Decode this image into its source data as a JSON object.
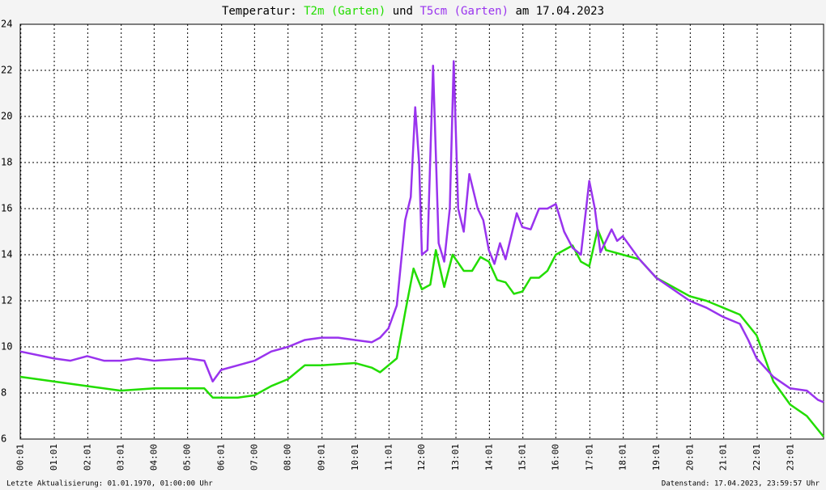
{
  "chart_data": {
    "type": "line",
    "title_parts": [
      "Temperatur:",
      "und",
      "am 17.04.2023"
    ],
    "footer_left": "Letzte Aktualisierung: 01.01.1970, 01:00:00 Uhr",
    "footer_right": "Datenstand: 17.04.2023, 23:59:57 Uhr",
    "xlim": [
      "00:00",
      "24:00"
    ],
    "xticks": [
      "00:01",
      "01:01",
      "02:01",
      "03:01",
      "04:00",
      "05:00",
      "06:01",
      "07:00",
      "08:00",
      "09:01",
      "10:01",
      "11:01",
      "12:00",
      "13:01",
      "14:01",
      "15:01",
      "16:00",
      "17:01",
      "18:01",
      "19:01",
      "20:01",
      "21:01",
      "22:01",
      "23:01"
    ],
    "ylim": [
      6,
      24
    ],
    "yticks": [
      6,
      8,
      10,
      12,
      14,
      16,
      18,
      20,
      22,
      24
    ],
    "grid": true,
    "series": [
      {
        "name": "T2m (Garten)",
        "color": "#22dd00",
        "x": [
          "00:00",
          "01:00",
          "02:00",
          "03:00",
          "04:00",
          "05:00",
          "05:30",
          "05:45",
          "06:30",
          "07:00",
          "07:30",
          "08:00",
          "08:30",
          "09:00",
          "10:00",
          "10:30",
          "10:45",
          "11:00",
          "11:15",
          "11:30",
          "11:45",
          "12:00",
          "12:15",
          "12:25",
          "12:40",
          "12:55",
          "13:15",
          "13:30",
          "13:45",
          "14:00",
          "14:15",
          "14:30",
          "14:45",
          "15:00",
          "15:15",
          "15:30",
          "15:45",
          "16:00",
          "16:30",
          "16:45",
          "17:00",
          "17:15",
          "17:30",
          "18:00",
          "18:30",
          "19:00",
          "19:30",
          "20:00",
          "20:30",
          "21:00",
          "21:30",
          "22:00",
          "22:15",
          "22:30",
          "23:00",
          "23:30",
          "24:00"
        ],
        "values": [
          8.7,
          8.5,
          8.3,
          8.1,
          8.2,
          8.2,
          8.2,
          7.8,
          7.8,
          7.9,
          8.3,
          8.6,
          9.2,
          9.2,
          9.3,
          9.1,
          8.9,
          9.2,
          9.5,
          11.5,
          13.4,
          12.5,
          12.7,
          14.2,
          12.6,
          14.0,
          13.3,
          13.3,
          13.9,
          13.7,
          12.9,
          12.8,
          12.3,
          12.4,
          13.0,
          13.0,
          13.3,
          14.0,
          14.4,
          13.7,
          13.5,
          15.1,
          14.2,
          14.0,
          13.8,
          13.0,
          12.6,
          12.2,
          12.0,
          11.7,
          11.4,
          10.5,
          9.5,
          8.5,
          7.5,
          7.0,
          6.1
        ]
      },
      {
        "name": "T5cm (Garten)",
        "color": "#9933ee",
        "x": [
          "00:00",
          "01:00",
          "01:30",
          "02:00",
          "02:30",
          "03:00",
          "03:30",
          "04:00",
          "05:00",
          "05:30",
          "05:45",
          "06:00",
          "06:30",
          "07:00",
          "07:30",
          "08:00",
          "08:30",
          "09:00",
          "09:30",
          "10:00",
          "10:30",
          "10:45",
          "11:00",
          "11:15",
          "11:30",
          "11:40",
          "11:48",
          "11:55",
          "12:00",
          "12:10",
          "12:20",
          "12:30",
          "12:40",
          "12:50",
          "12:57",
          "13:05",
          "13:15",
          "13:25",
          "13:40",
          "13:50",
          "14:00",
          "14:10",
          "14:20",
          "14:30",
          "14:40",
          "14:50",
          "15:00",
          "15:15",
          "15:30",
          "15:45",
          "16:00",
          "16:15",
          "16:30",
          "16:45",
          "17:00",
          "17:10",
          "17:20",
          "17:30",
          "17:40",
          "17:50",
          "18:00",
          "18:15",
          "18:30",
          "19:00",
          "19:30",
          "20:00",
          "20:30",
          "21:00",
          "21:30",
          "21:45",
          "22:00",
          "22:30",
          "23:00",
          "23:30",
          "23:50",
          "24:00"
        ],
        "values": [
          9.8,
          9.5,
          9.4,
          9.6,
          9.4,
          9.4,
          9.5,
          9.4,
          9.5,
          9.4,
          8.5,
          9.0,
          9.2,
          9.4,
          9.8,
          10.0,
          10.3,
          10.4,
          10.4,
          10.3,
          10.2,
          10.4,
          10.8,
          11.8,
          15.5,
          16.5,
          20.4,
          18.0,
          14.0,
          14.2,
          22.2,
          14.5,
          13.7,
          16.0,
          22.4,
          16.0,
          15.0,
          17.5,
          16.0,
          15.5,
          14.2,
          13.6,
          14.5,
          13.8,
          14.8,
          15.8,
          15.2,
          15.1,
          16.0,
          16.0,
          16.2,
          15.0,
          14.3,
          14.0,
          17.2,
          16.0,
          14.1,
          14.6,
          15.1,
          14.6,
          14.8,
          14.3,
          13.8,
          13.0,
          12.5,
          12.0,
          11.7,
          11.3,
          11.0,
          10.3,
          9.5,
          8.7,
          8.2,
          8.1,
          7.7,
          7.6
        ]
      }
    ]
  }
}
